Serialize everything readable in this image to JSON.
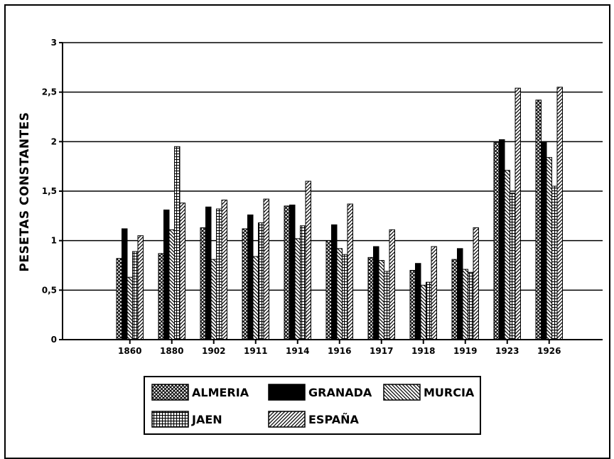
{
  "chart_data": {
    "type": "bar",
    "title": "",
    "xlabel": "",
    "ylabel": "PESETAS CONSTANTES",
    "ylim": [
      0,
      3
    ],
    "yticks": [
      "0",
      "0,5",
      "1",
      "1,5",
      "2",
      "2,5",
      "3"
    ],
    "grid": true,
    "legend_position": "bottom",
    "categories": [
      "1860",
      "1880",
      "1902",
      "1911",
      "1914",
      "1916",
      "1917",
      "1918",
      "1919",
      "1923",
      "1926"
    ],
    "series": [
      {
        "name": "ALMERIA",
        "pattern": "crosshatch",
        "values": [
          0.82,
          0.87,
          1.13,
          1.12,
          1.35,
          1.0,
          0.83,
          0.7,
          0.81,
          1.99,
          2.42
        ]
      },
      {
        "name": "GRANADA",
        "pattern": "solid",
        "values": [
          1.12,
          1.31,
          1.34,
          1.26,
          1.36,
          1.16,
          0.94,
          0.77,
          0.92,
          2.02,
          2.0
        ]
      },
      {
        "name": "MURCIA",
        "pattern": "backslash",
        "values": [
          0.63,
          1.11,
          0.81,
          0.84,
          1.02,
          0.92,
          0.8,
          0.55,
          0.71,
          1.71,
          1.84
        ]
      },
      {
        "name": "JAEN",
        "pattern": "grid",
        "values": [
          0.89,
          1.95,
          1.32,
          1.18,
          1.15,
          0.86,
          0.69,
          0.58,
          0.68,
          1.48,
          1.55
        ]
      },
      {
        "name": "ESPAÑA",
        "pattern": "slash",
        "values": [
          1.05,
          1.38,
          1.41,
          1.42,
          1.6,
          1.37,
          1.11,
          0.94,
          1.13,
          2.54,
          2.55
        ]
      }
    ]
  }
}
